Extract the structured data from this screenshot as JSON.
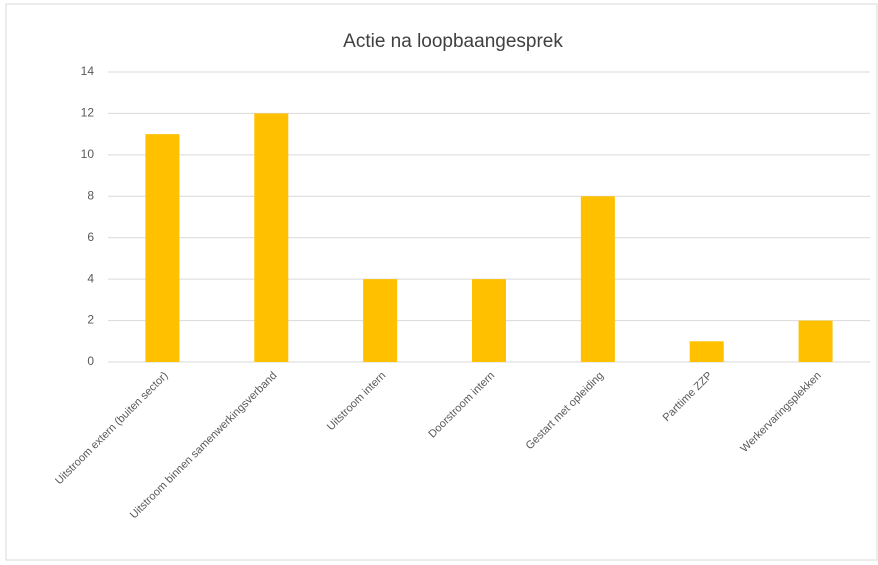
{
  "chart_data": {
    "type": "bar",
    "title": "Actie na loopbaangesprek",
    "categories": [
      "Uitstroom extern (buiten sector)",
      "Uitstroom binnen samenwerkingsverband",
      "Uitstroom intern",
      "Doorstroom intern",
      "Gestart met opleiding",
      "Parttime ZZP",
      "Werkervaringsplekken"
    ],
    "values": [
      11,
      12,
      4,
      4,
      8,
      1,
      2
    ],
    "color": "#ffc000",
    "ylim": [
      0,
      14
    ],
    "yticks": [
      0,
      2,
      4,
      6,
      8,
      10,
      12,
      14
    ],
    "grid": true
  }
}
